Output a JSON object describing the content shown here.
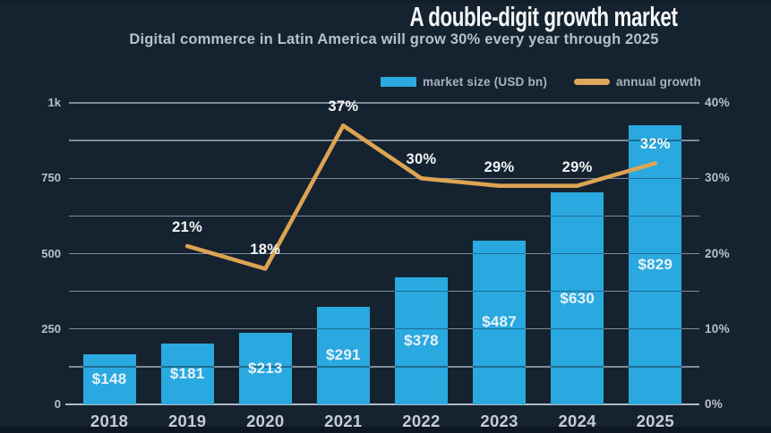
{
  "header": {
    "title": "A double-digit growth market",
    "subtitle": "Digital commerce in Latin America will grow 30% every year through 2025"
  },
  "legend": {
    "items": [
      {
        "label": "market size (USD bn)",
        "type": "bar",
        "color": "#2aa9e0"
      },
      {
        "label": "annual growth",
        "type": "line",
        "color": "#dfa95a"
      }
    ]
  },
  "chart_data": {
    "type": "bar",
    "title": "A double-digit growth market",
    "subtitle": "Digital commerce in Latin America will grow 30% every year through 2025",
    "categories": [
      "2018",
      "2019",
      "2020",
      "2021",
      "2022",
      "2023",
      "2024",
      "2025"
    ],
    "series": [
      {
        "name": "market size (USD bn)",
        "type": "bar",
        "unit": "USD bn",
        "color": "#2aa9e0",
        "values": [
          148,
          181,
          213,
          291,
          378,
          487,
          630,
          829
        ],
        "labels": [
          "$148",
          "$181",
          "$213",
          "$291",
          "$378",
          "$487",
          "$630",
          "$829"
        ]
      },
      {
        "name": "annual growth",
        "type": "line",
        "unit": "%",
        "color": "#dca452",
        "values": [
          null,
          21,
          18,
          37,
          30,
          29,
          29,
          32
        ],
        "labels": [
          null,
          "21%",
          "18%",
          "37%",
          "30%",
          "29%",
          "29%",
          "32%"
        ]
      }
    ],
    "left_axis": {
      "ticks": [
        "0",
        "250",
        "500",
        "750",
        "1k"
      ],
      "range": [
        0,
        1000
      ]
    },
    "right_axis": {
      "ticks": [
        "0%",
        "10%",
        "20%",
        "30%",
        "40%"
      ],
      "range": [
        0,
        40
      ]
    },
    "grid": {
      "horizontal": true,
      "minor_lines_between_majors": true
    },
    "legend_position": "top-center",
    "background_color": "#152230",
    "gridline_color": "#97a2ad"
  }
}
